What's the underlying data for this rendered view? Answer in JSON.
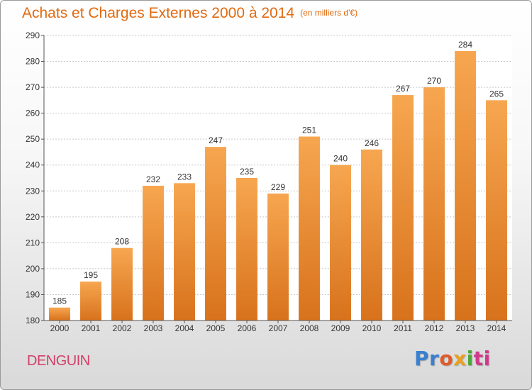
{
  "header": {
    "title": "Achats et Charges Externes 2000 à 2014",
    "unit": "(en milliers d'€)"
  },
  "place_name": "DENGUIN",
  "logo": {
    "letters": [
      "Pr",
      "o",
      "x",
      "i",
      "ti"
    ]
  },
  "colors": {
    "bar_light": "#f7a650",
    "bar_dark": "#d8721c",
    "title": "#e06a10",
    "place": "#d3406a",
    "grid": "#c8c8c8"
  },
  "chart_data": {
    "type": "bar",
    "title": "Achats et Charges Externes 2000 à 2014",
    "subtitle": "(en milliers d'€)",
    "xlabel": "",
    "ylabel": "",
    "categories": [
      "2000",
      "2001",
      "2002",
      "2003",
      "2004",
      "2005",
      "2006",
      "2007",
      "2008",
      "2009",
      "2010",
      "2011",
      "2012",
      "2013",
      "2014"
    ],
    "values": [
      185,
      195,
      208,
      232,
      233,
      247,
      235,
      229,
      251,
      240,
      246,
      267,
      270,
      284,
      265
    ],
    "ylim": [
      180,
      290
    ],
    "yticks": [
      180,
      190,
      200,
      210,
      220,
      230,
      240,
      250,
      260,
      270,
      280,
      290
    ],
    "grid": true,
    "data_labels": true
  }
}
